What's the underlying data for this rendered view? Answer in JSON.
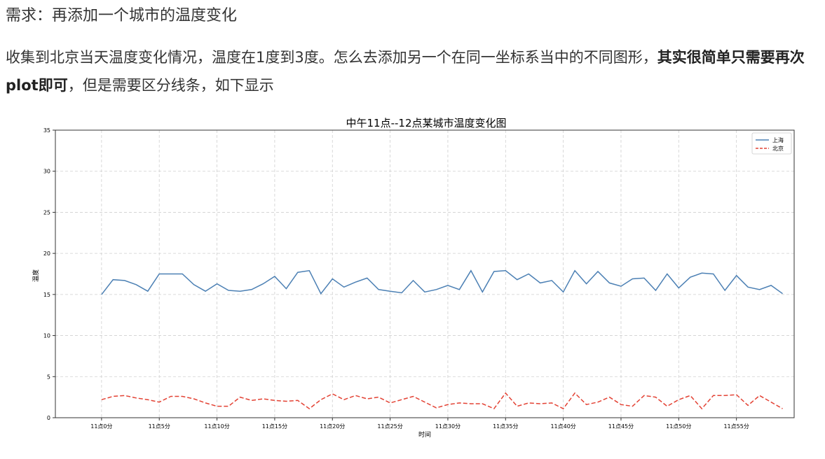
{
  "heading": "需求：再添加一个城市的温度变化",
  "paragraph": {
    "part1": "收集到北京当天温度变化情况，温度在1度到3度。怎么去添加另一个在同一坐标系当中的不同图形，",
    "bold": "其实很简单只需要再次plot即可",
    "part2": "，但是需要区分线条，如下显示"
  },
  "chart_data": {
    "type": "line",
    "title": "中午11点--12点某城市温度变化图",
    "xlabel": "时间",
    "ylabel": "温度",
    "ylim": [
      0,
      35
    ],
    "yticks": [
      0,
      5,
      10,
      15,
      20,
      25,
      30,
      35
    ],
    "xlim": [
      -4,
      60
    ],
    "xticks": [
      0,
      5,
      10,
      15,
      20,
      25,
      30,
      35,
      40,
      45,
      50,
      55
    ],
    "xtick_labels": [
      "11点0分",
      "11点5分",
      "11点10分",
      "11点15分",
      "11点20分",
      "11点25分",
      "11点30分",
      "11点35分",
      "11点40分",
      "11点45分",
      "11点50分",
      "11点55分"
    ],
    "grid": true,
    "legend": "top-right",
    "x": [
      0,
      1,
      2,
      3,
      4,
      5,
      6,
      7,
      8,
      9,
      10,
      11,
      12,
      13,
      14,
      15,
      16,
      17,
      18,
      19,
      20,
      21,
      22,
      23,
      24,
      25,
      26,
      27,
      28,
      29,
      30,
      31,
      32,
      33,
      34,
      35,
      36,
      37,
      38,
      39,
      40,
      41,
      42,
      43,
      44,
      45,
      46,
      47,
      48,
      49,
      50,
      51,
      52,
      53,
      54,
      55,
      56,
      57,
      58,
      59
    ],
    "series": [
      {
        "name": "上海",
        "color": "#4c80b4",
        "style": "solid",
        "values": [
          15.0,
          16.8,
          16.7,
          16.2,
          15.4,
          17.5,
          17.5,
          17.5,
          16.2,
          15.4,
          16.3,
          15.5,
          15.4,
          15.6,
          16.3,
          17.2,
          15.7,
          17.7,
          17.9,
          15.1,
          16.9,
          15.9,
          16.5,
          17.0,
          15.6,
          15.4,
          15.2,
          16.7,
          15.3,
          15.6,
          16.1,
          15.6,
          17.9,
          15.3,
          17.8,
          17.9,
          16.8,
          17.5,
          16.4,
          16.7,
          15.3,
          17.9,
          16.3,
          17.8,
          16.4,
          16.0,
          16.9,
          17.0,
          15.5,
          17.5,
          15.8,
          17.1,
          17.6,
          17.5,
          15.5,
          17.3,
          15.9,
          15.6,
          16.1,
          15.1
        ]
      },
      {
        "name": "北京",
        "color": "#e34234",
        "style": "dashed",
        "values": [
          2.2,
          2.6,
          2.7,
          2.4,
          2.2,
          1.9,
          2.6,
          2.6,
          2.3,
          1.8,
          1.4,
          1.4,
          2.5,
          2.1,
          2.3,
          2.1,
          2.0,
          2.1,
          1.1,
          2.2,
          2.9,
          2.2,
          2.7,
          2.3,
          2.5,
          1.8,
          2.2,
          2.6,
          1.9,
          1.2,
          1.6,
          1.8,
          1.7,
          1.7,
          1.1,
          3.0,
          1.4,
          1.8,
          1.7,
          1.8,
          1.1,
          3.0,
          1.6,
          1.9,
          2.5,
          1.6,
          1.4,
          2.7,
          2.5,
          1.4,
          2.2,
          2.7,
          1.1,
          2.7,
          2.7,
          2.8,
          1.5,
          2.7,
          1.9,
          1.1
        ]
      }
    ]
  }
}
